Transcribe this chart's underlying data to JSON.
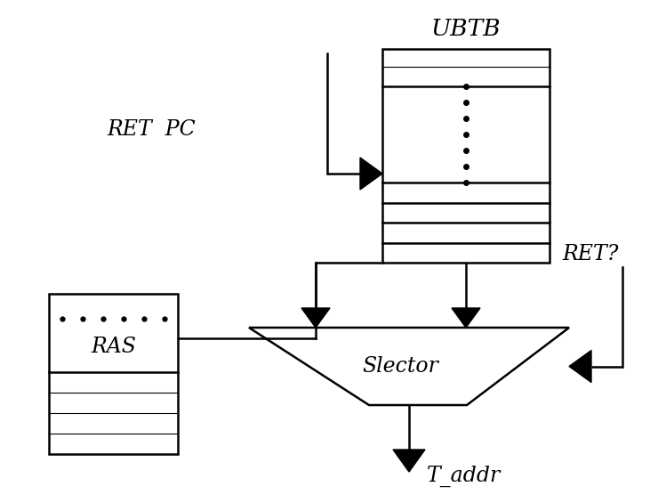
{
  "bg_color": "#ffffff",
  "line_color": "#000000",
  "fill_color": "#000000",
  "ubtb_label": "UBTB",
  "ras_label": "RAS",
  "ret_pc_label": "RET  PC",
  "ret_q_label": "RET?",
  "selector_label": "Slector",
  "t_addr_label": "T_addr",
  "font_size": 17,
  "line_width": 1.8
}
